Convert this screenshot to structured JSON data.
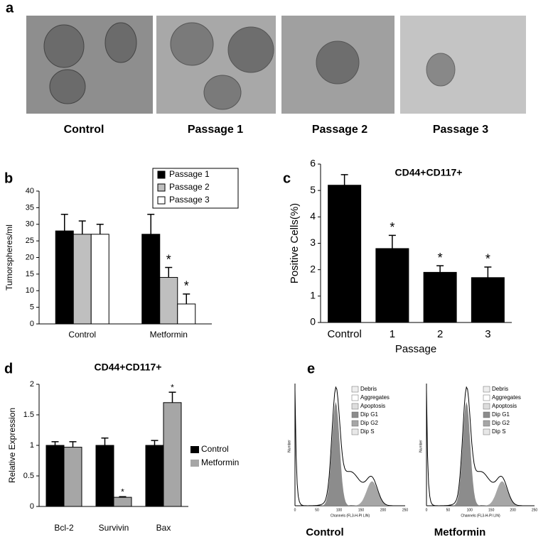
{
  "panel_labels": [
    "a",
    "b",
    "c",
    "d",
    "e"
  ],
  "panel_a": {
    "captions": [
      "Control",
      "Passage 1",
      "Passage 2",
      "Passage 3"
    ]
  },
  "chart_data": [
    {
      "type": "bar",
      "y_label": "Tumorspheres/ml",
      "categories": [
        "Control",
        "Metformin"
      ],
      "series": [
        {
          "name": "Passage 1",
          "color": "#000000",
          "values": [
            28,
            27
          ],
          "errors": [
            5,
            6
          ],
          "labels": [
            null,
            null
          ]
        },
        {
          "name": "Passage 2",
          "color": "#bfbfbf",
          "values": [
            27,
            14
          ],
          "errors": [
            4,
            3
          ],
          "labels": [
            null,
            "*"
          ]
        },
        {
          "name": "Passage 3",
          "color": "#ffffff",
          "values": [
            27,
            6
          ],
          "errors": [
            3,
            3
          ],
          "labels": [
            null,
            "*"
          ]
        }
      ],
      "ylim": [
        0,
        40
      ],
      "yticks": [
        0,
        5,
        10,
        15,
        20,
        25,
        30,
        35,
        40
      ],
      "legend": "upper right"
    },
    {
      "type": "bar",
      "title": "CD44+CD117+",
      "y_label": "Positive Cells(%)",
      "x_label": "Passage",
      "categories": [
        "Control",
        "1",
        "2",
        "3"
      ],
      "values": [
        5.2,
        2.8,
        1.9,
        1.7
      ],
      "errors": [
        0.4,
        0.5,
        0.25,
        0.4
      ],
      "labels": [
        null,
        "*",
        "*",
        "*"
      ],
      "color": "#000000",
      "ylim": [
        0,
        6
      ],
      "yticks": [
        0,
        1,
        2,
        3,
        4,
        5,
        6
      ]
    },
    {
      "type": "bar",
      "title": "CD44+CD117+",
      "y_label": "Relative Expression",
      "categories": [
        "Bcl-2",
        "Survivin",
        "Bax"
      ],
      "series": [
        {
          "name": "Control",
          "color": "#000000",
          "values": [
            1,
            1,
            1
          ],
          "errors": [
            0.06,
            0.12,
            0.08
          ],
          "labels": [
            null,
            null,
            null
          ]
        },
        {
          "name": "Metformin",
          "color": "#a6a6a6",
          "values": [
            0.97,
            0.15,
            1.7
          ],
          "errors": [
            0.09,
            0.01,
            0.17
          ],
          "labels": [
            null,
            "*",
            "*"
          ]
        }
      ],
      "ylim": [
        0,
        2
      ],
      "yticks": [
        0,
        0.5,
        1,
        1.5,
        2
      ],
      "legend": "right"
    }
  ],
  "panel_e": {
    "y_label": "Number",
    "x_label": "Channels (FL3-H-PI LIN)",
    "x_ticks": [
      0,
      50,
      100,
      150,
      200,
      250
    ],
    "legend": [
      "Debris",
      "Aggregates",
      "Apoptosis",
      "Dip G1",
      "Dip G2",
      "Dip S"
    ],
    "captions": [
      "Control",
      "Metformin"
    ]
  }
}
